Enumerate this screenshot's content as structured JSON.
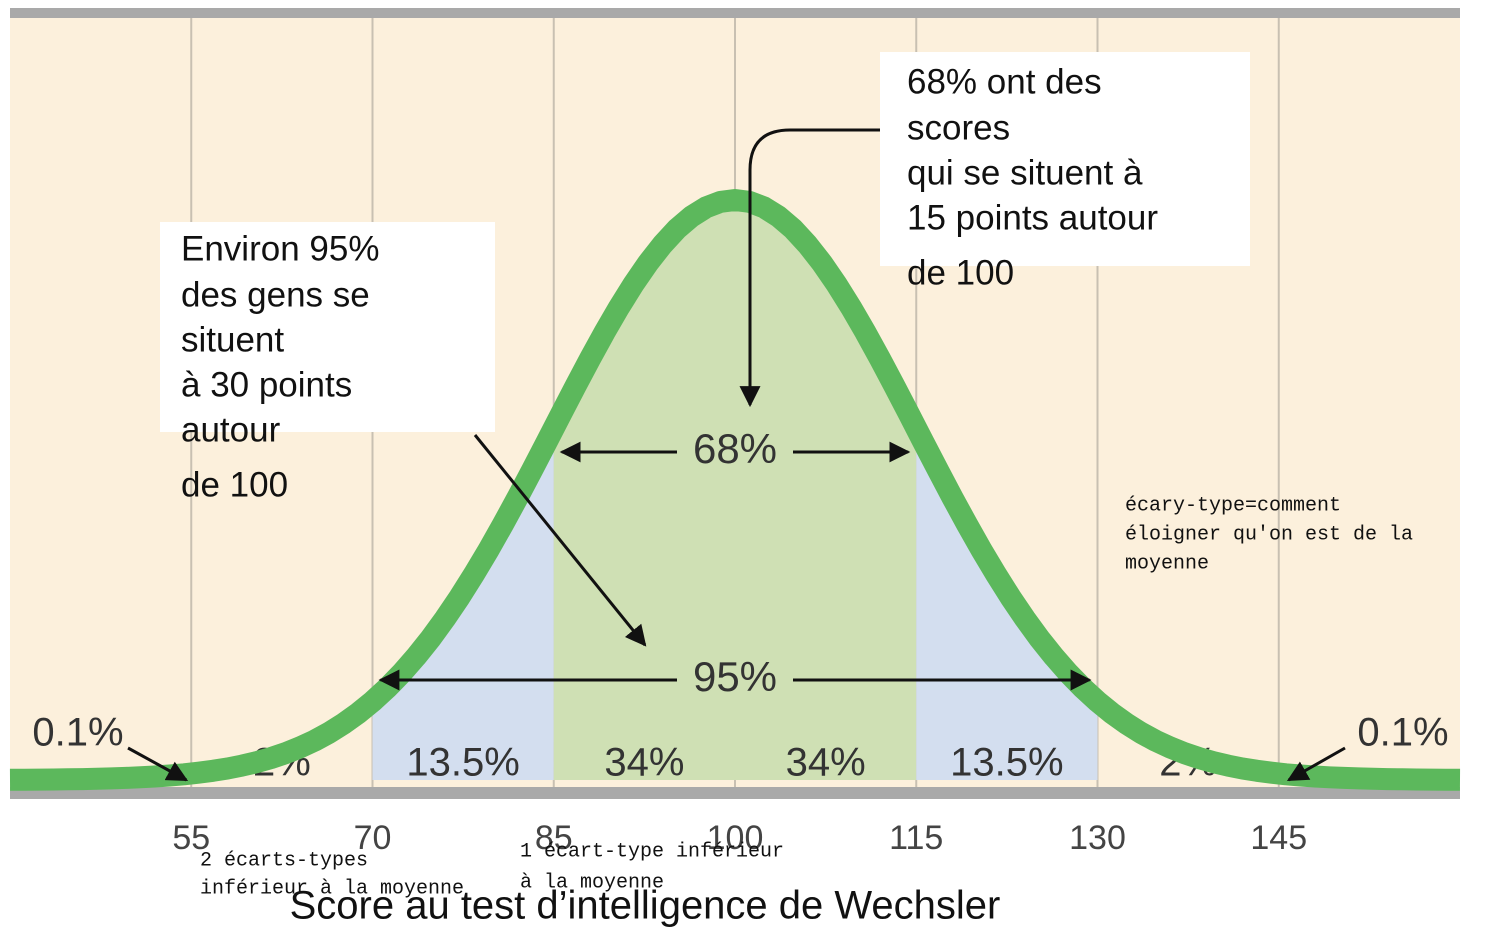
{
  "chart_data": {
    "type": "bell",
    "title": "Score au test d’intelligence de Wechsler",
    "xlim": [
      40,
      160
    ],
    "xticks": [
      55,
      70,
      85,
      100,
      115,
      130,
      145
    ],
    "bands": {
      "edges": [
        55,
        70,
        85,
        100,
        115,
        130,
        145
      ],
      "values": [
        2,
        13.5,
        34,
        34,
        13.5,
        2
      ],
      "value_labels": [
        "2%",
        "13.5%",
        "34%",
        "34%",
        "13.5%",
        "2%"
      ],
      "colors": [
        null,
        "#d3deef",
        "#cfe0b4",
        "#cfe0b4",
        "#d3deef",
        null
      ]
    },
    "tails": {
      "values": [
        0.1,
        0.1
      ],
      "value_labels": [
        "0.1%",
        "0.1%"
      ]
    },
    "spans": [
      {
        "value": 68,
        "label": "68%",
        "from": 85,
        "to": 115
      },
      {
        "value": 95,
        "label": "95%",
        "from": 70,
        "to": 130
      }
    ],
    "curve_color": "#5cb85c",
    "annotations": {
      "left_box": [
        "Environ 95%",
        "des gens se",
        "situent",
        "à 30 points",
        "autour",
        "de 100"
      ],
      "right_box": [
        "68% ont des",
        "scores",
        " qui se situent à",
        "15 points autour",
        "de 100"
      ],
      "ecart_note": [
        "écary-type=comment",
        "éloigner qu'on est de la",
        "moyenne"
      ],
      "two_sd": [
        "2 écarts-types",
        "inférieur à la moyenne"
      ],
      "one_sd": [
        "1 écart-type inférieur",
        "à la moyenne"
      ]
    }
  }
}
